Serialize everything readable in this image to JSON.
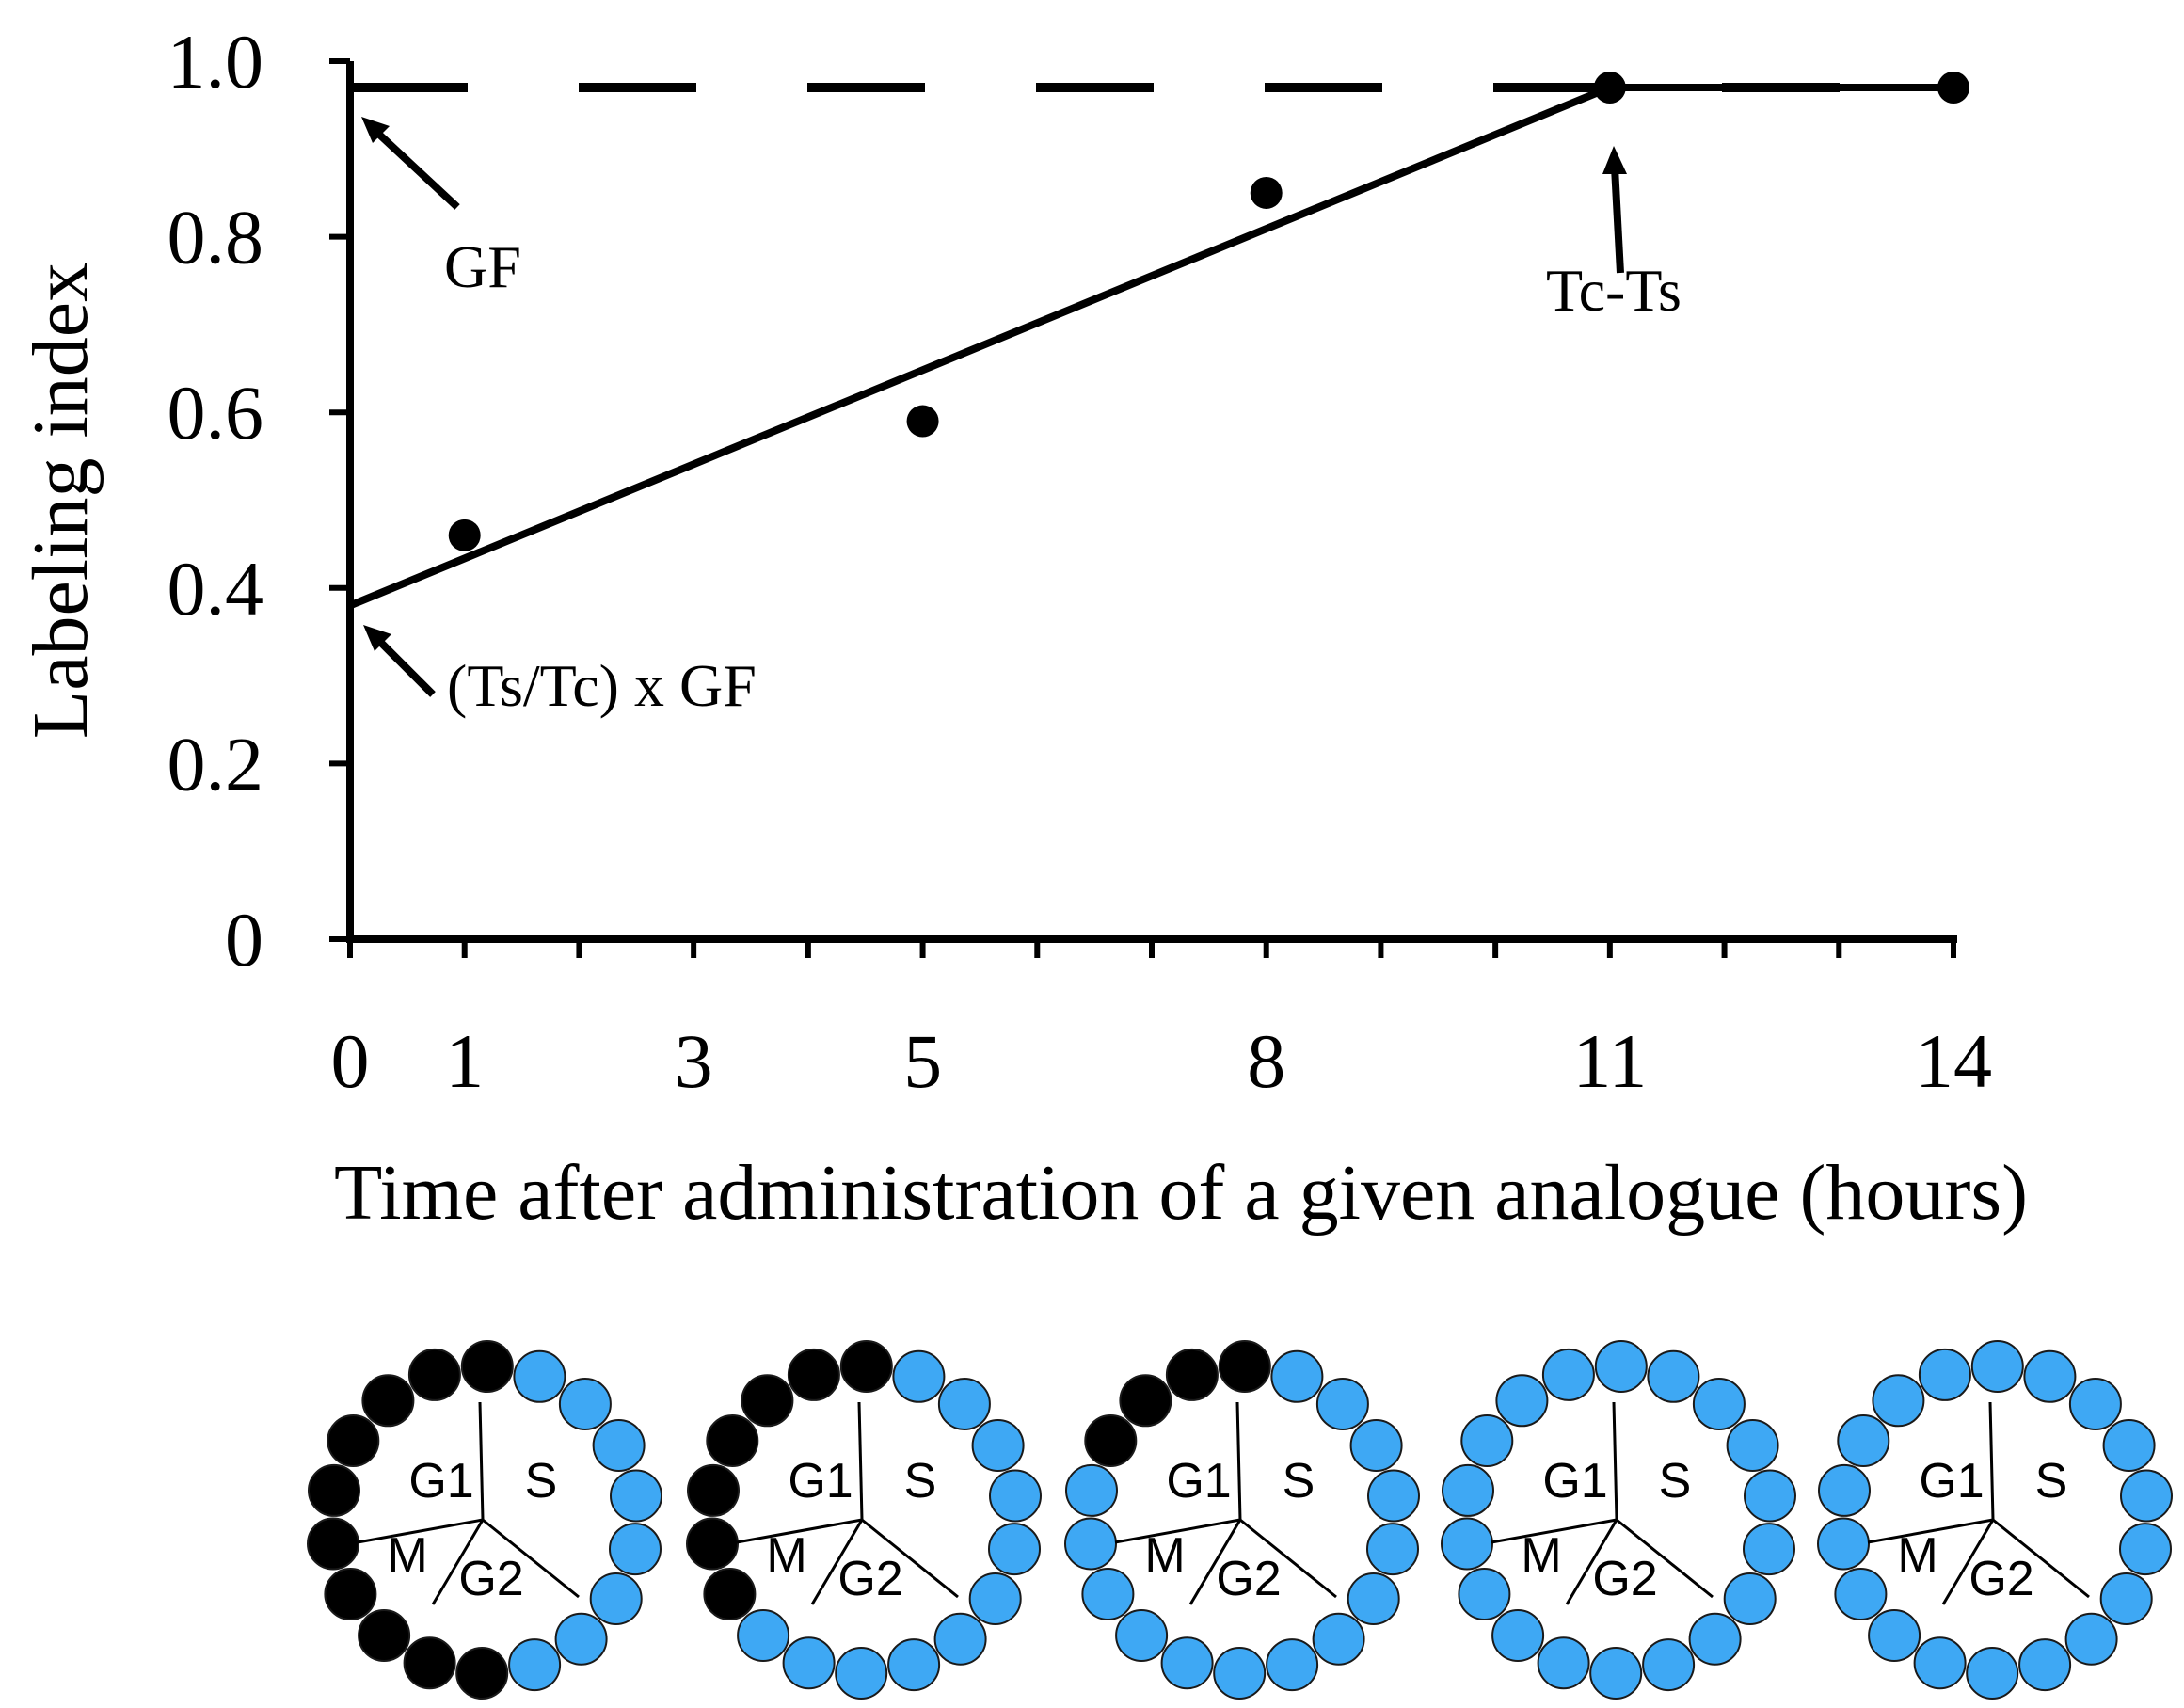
{
  "chart_data": {
    "type": "scatter",
    "title": "",
    "xlabel": "Time after administration of a given analogue (hours)",
    "ylabel": "Labeling index",
    "xlim": [
      0,
      14
    ],
    "ylim": [
      0,
      1.0
    ],
    "x_tick_labels": [
      "0",
      "1",
      "3",
      "5",
      "8",
      "11",
      "14"
    ],
    "y_tick_labels": [
      "0",
      "0.2",
      "0.4",
      "0.6",
      "0.8",
      "1.0"
    ],
    "grid": false,
    "series": [
      {
        "points": [
          {
            "x": 1,
            "y": 0.46
          },
          {
            "x": 5,
            "y": 0.59
          },
          {
            "x": 8,
            "y": 0.85
          },
          {
            "x": 11,
            "y": 0.97
          },
          {
            "x": 14,
            "y": 0.97
          }
        ]
      }
    ],
    "fit_line": {
      "x": [
        0,
        11,
        14
      ],
      "y": [
        0.38,
        0.97,
        0.97
      ]
    },
    "reference_line": {
      "style": "dashed",
      "y": 0.97
    },
    "annotations": [
      {
        "text": "GF",
        "x": 0,
        "y": 0.97
      },
      {
        "text": "Tc-Ts",
        "x": 11,
        "y": 0.97
      },
      {
        "text": "(Ts/Tc) x GF",
        "x": 0,
        "y": 0.38
      }
    ]
  },
  "cell_cycle_diagrams": {
    "phase_labels": {
      "g1": "G1",
      "s": "S",
      "m": "M",
      "g2": "G2"
    },
    "colors": {
      "labeled": "#3ea8f4",
      "unlabeled": "#000000"
    },
    "dots_per_ring": 18,
    "unlabeled_counts": [
      10,
      7,
      4,
      0,
      0
    ]
  }
}
